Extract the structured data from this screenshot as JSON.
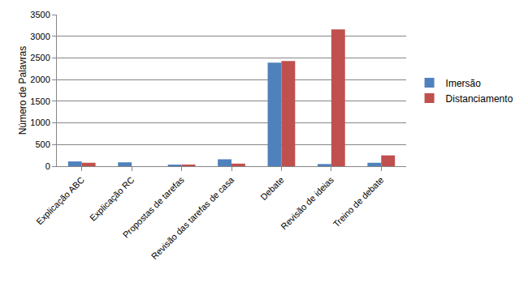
{
  "chart_data": {
    "type": "bar",
    "y_label": "Número de Palavras",
    "categories": [
      "Explicação ABC",
      "Explicação RC",
      "Propostas de tarefas",
      "Revisão das tarefas de casa",
      "Debate",
      "Revisão de ideias",
      "Treino de debate"
    ],
    "series": [
      {
        "name": "Imersão",
        "color": "#4f81bd",
        "values": [
          110,
          90,
          30,
          160,
          2390,
          50,
          80
        ]
      },
      {
        "name": "Distanciamento",
        "color": "#c0504d",
        "values": [
          80,
          0,
          40,
          60,
          2430,
          3160,
          250
        ]
      }
    ],
    "ylim": [
      0,
      3500
    ],
    "yticks": [
      0,
      500,
      1000,
      1500,
      2000,
      2500,
      3000,
      3500
    ],
    "grid": true,
    "legend": "right"
  }
}
